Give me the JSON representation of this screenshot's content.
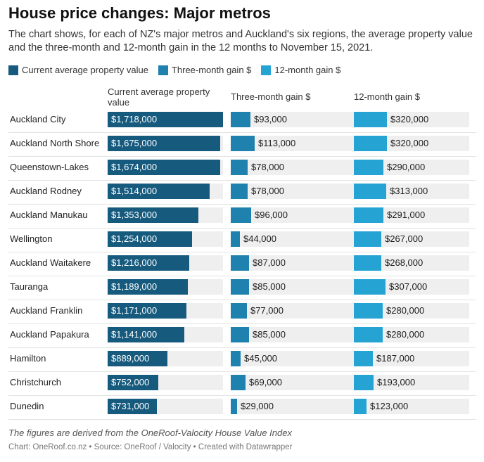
{
  "title": "House price changes: Major metros",
  "subtitle": "The chart shows, for each of NZ's major metros and Auckland's six regions, the average property value and the three-month and 12-month gain in the 12 months to November 15, 2021.",
  "legend": [
    {
      "label": "Current average property value",
      "color": "#165a7e"
    },
    {
      "label": "Three-month gain $",
      "color": "#1f81ae"
    },
    {
      "label": "12-month gain $",
      "color": "#25a4d4"
    }
  ],
  "columns": {
    "value": "Current average property value",
    "three_month": "Three-month gain $",
    "twelve_month": "12-month gain $"
  },
  "colors": {
    "value": "#165a7e",
    "three_month": "#1f81ae",
    "twelve_month": "#25a4d4",
    "track": "#efefef"
  },
  "chart_data": {
    "type": "bar",
    "categories": [
      "Auckland City",
      "Auckland North Shore",
      "Queenstown-Lakes",
      "Auckland Rodney",
      "Auckland Manukau",
      "Wellington",
      "Auckland Waitakere",
      "Tauranga",
      "Auckland Franklin",
      "Auckland Papakura",
      "Hamilton",
      "Christchurch",
      "Dunedin"
    ],
    "series": [
      {
        "name": "Current average property value",
        "values": [
          1718000,
          1675000,
          1674000,
          1514000,
          1353000,
          1254000,
          1216000,
          1189000,
          1171000,
          1141000,
          889000,
          752000,
          731000
        ],
        "labels": [
          "$1,718,000",
          "$1,675,000",
          "$1,674,000",
          "$1,514,000",
          "$1,353,000",
          "$1,254,000",
          "$1,216,000",
          "$1,189,000",
          "$1,171,000",
          "$1,141,000",
          "$889,000",
          "$752,000",
          "$731,000"
        ]
      },
      {
        "name": "Three-month gain $",
        "values": [
          93000,
          113000,
          78000,
          78000,
          96000,
          44000,
          87000,
          85000,
          77000,
          85000,
          45000,
          69000,
          29000
        ],
        "labels": [
          "$93,000",
          "$113,000",
          "$78,000",
          "$78,000",
          "$96,000",
          "$44,000",
          "$87,000",
          "$85,000",
          "$77,000",
          "$85,000",
          "$45,000",
          "$69,000",
          "$29,000"
        ]
      },
      {
        "name": "12-month gain $",
        "values": [
          320000,
          320000,
          290000,
          313000,
          291000,
          267000,
          268000,
          307000,
          280000,
          280000,
          187000,
          193000,
          123000
        ],
        "labels": [
          "$320,000",
          "$320,000",
          "$290,000",
          "$313,000",
          "$291,000",
          "$267,000",
          "$268,000",
          "$307,000",
          "$280,000",
          "$280,000",
          "$187,000",
          "$193,000",
          "$123,000"
        ]
      }
    ],
    "scale_max": [
      1718000,
      1125000,
      1125000
    ]
  },
  "footnote": "The figures are derived from the OneRoof-Valocity House Value Index",
  "credit": "Chart: OneRoof.co.nz • Source: OneRoof / Valocity • Created with Datawrapper"
}
